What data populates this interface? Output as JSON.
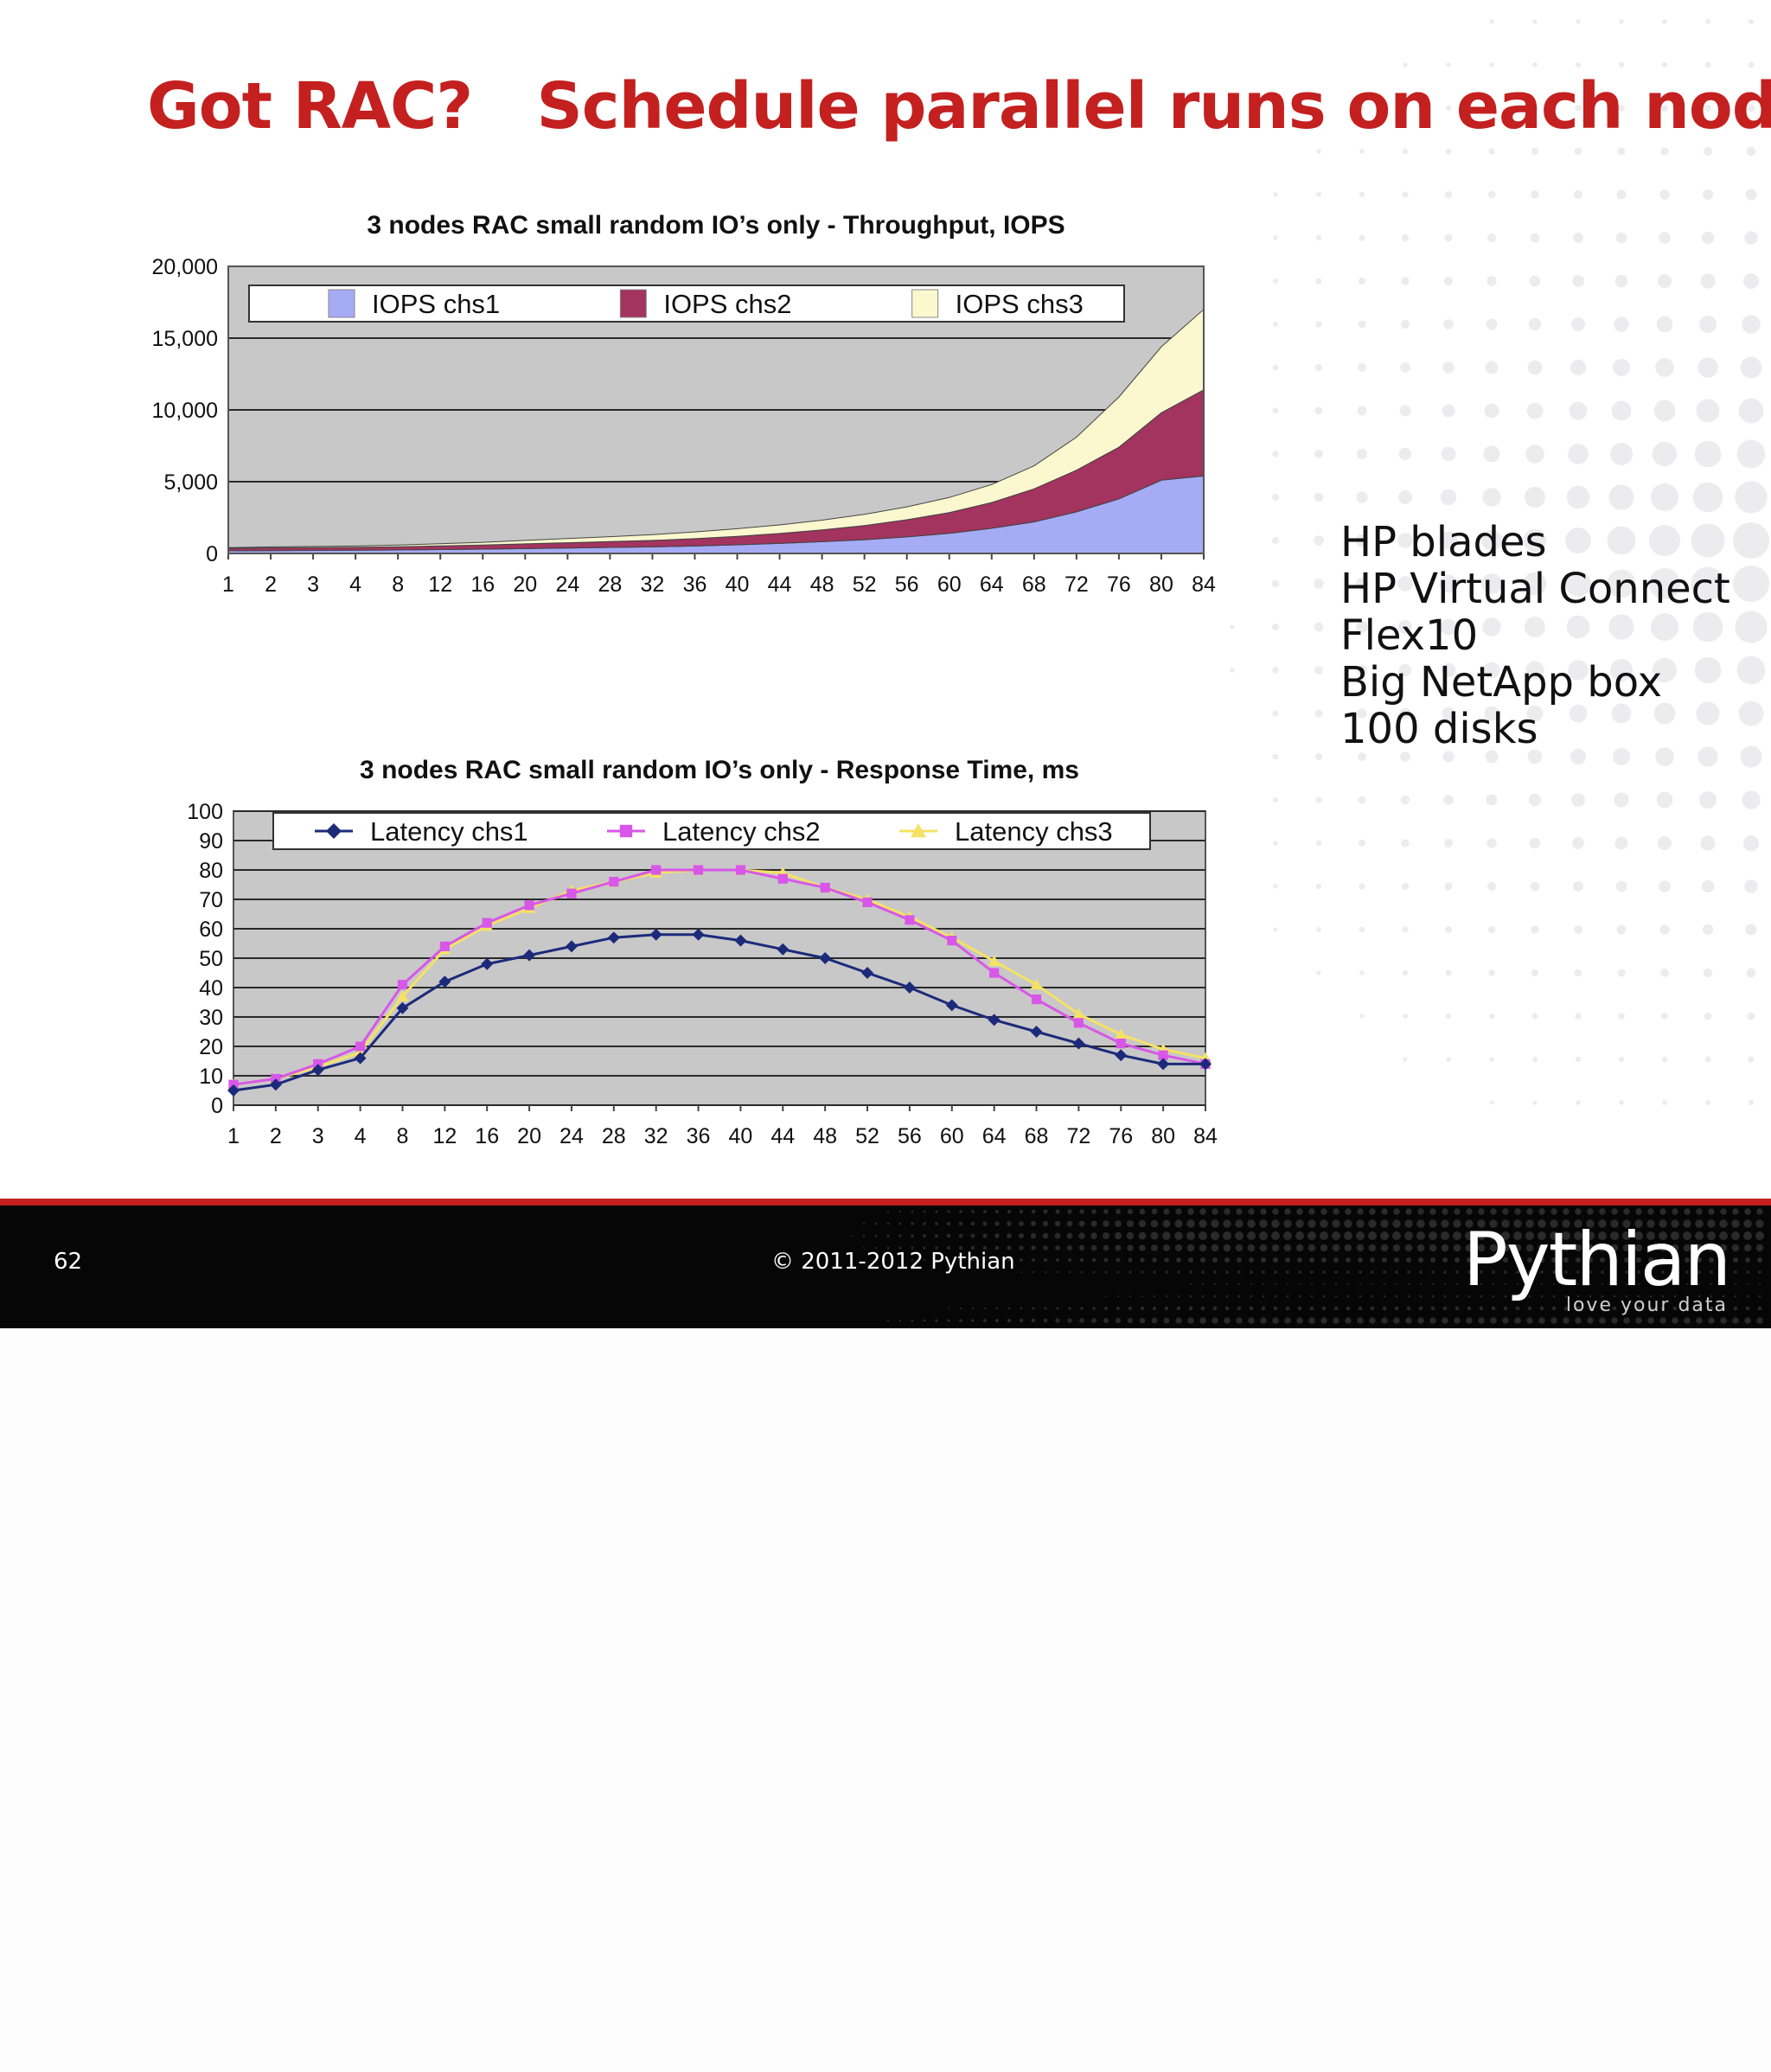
{
  "slide": {
    "title": "Got RAC?   Schedule parallel runs on each node",
    "bullets": [
      "HP blades",
      "HP Virtual Connect",
      "Flex10",
      "Big NetApp box",
      "100 disks"
    ],
    "page_number": "62",
    "copyright": "© 2011-2012 Pythian",
    "logo": {
      "wordmark": "Pythian",
      "tagline": "love your data"
    }
  },
  "colors": {
    "title": "#c3201f",
    "footer_line": "#c3201f",
    "footer_bg": "#060606",
    "plot_bg": "#c8c8c8"
  },
  "chart_data": [
    {
      "type": "area",
      "stacked": true,
      "title": "3 nodes RAC small random IO’s only - Throughput, IOPS",
      "xlabel": "",
      "ylabel": "",
      "categories": [
        "1",
        "2",
        "3",
        "4",
        "8",
        "12",
        "16",
        "20",
        "24",
        "28",
        "32",
        "36",
        "40",
        "44",
        "48",
        "52",
        "56",
        "60",
        "64",
        "68",
        "72",
        "76",
        "80",
        "84"
      ],
      "ylim": [
        0,
        20000
      ],
      "yticks": [
        0,
        5000,
        10000,
        15000,
        20000
      ],
      "ytick_labels": [
        "0",
        "5,000",
        "10,000",
        "15,000",
        "20,000"
      ],
      "grid": true,
      "legend": "top",
      "series": [
        {
          "name": "IOPS chs1",
          "color": "#a6abf6",
          "values": [
            180,
            200,
            210,
            220,
            240,
            270,
            300,
            340,
            380,
            420,
            460,
            520,
            600,
            700,
            820,
            960,
            1150,
            1400,
            1750,
            2200,
            2900,
            3800,
            5100,
            5400
          ]
        },
        {
          "name": "IOPS chs2",
          "color": "#a3335f",
          "values": [
            170,
            190,
            200,
            210,
            230,
            260,
            290,
            330,
            370,
            410,
            450,
            510,
            590,
            690,
            820,
            980,
            1200,
            1450,
            1800,
            2300,
            2900,
            3600,
            4700,
            6000
          ]
        },
        {
          "name": "IOPS chs3",
          "color": "#fbf8cf",
          "values": [
            60,
            70,
            80,
            90,
            120,
            150,
            190,
            240,
            290,
            340,
            400,
            470,
            530,
            600,
            680,
            780,
            900,
            1050,
            1250,
            1600,
            2300,
            3500,
            4600,
            5600
          ]
        }
      ]
    },
    {
      "type": "line",
      "title": "3 nodes RAC small random IO’s only - Response Time, ms",
      "xlabel": "",
      "ylabel": "",
      "categories": [
        "1",
        "2",
        "3",
        "4",
        "8",
        "12",
        "16",
        "20",
        "24",
        "28",
        "32",
        "36",
        "40",
        "44",
        "48",
        "52",
        "56",
        "60",
        "64",
        "68",
        "72",
        "76",
        "80",
        "84"
      ],
      "ylim": [
        0,
        100
      ],
      "yticks": [
        0,
        10,
        20,
        30,
        40,
        50,
        60,
        70,
        80,
        90,
        100
      ],
      "ytick_labels": [
        "0",
        "10",
        "20",
        "30",
        "40",
        "50",
        "60",
        "70",
        "80",
        "90",
        "100"
      ],
      "grid": true,
      "legend": "top",
      "series": [
        {
          "name": "Latency chs1",
          "color": "#1c2a7a",
          "marker": "diamond",
          "values": [
            5,
            7,
            12,
            16,
            33,
            42,
            48,
            51,
            54,
            57,
            58,
            58,
            56,
            53,
            50,
            45,
            40,
            34,
            29,
            25,
            21,
            17,
            14,
            14
          ]
        },
        {
          "name": "Latency chs2",
          "color": "#d857e8",
          "marker": "square",
          "values": [
            7,
            9,
            14,
            20,
            41,
            54,
            62,
            68,
            72,
            76,
            80,
            80,
            80,
            77,
            74,
            69,
            63,
            56,
            45,
            36,
            28,
            21,
            17,
            14
          ]
        },
        {
          "name": "Latency chs3",
          "color": "#f5e265",
          "marker": "triangle",
          "values": [
            7,
            9,
            13,
            18,
            37,
            53,
            61,
            67,
            73,
            76,
            79,
            80,
            80,
            79,
            74,
            70,
            64,
            57,
            49,
            41,
            31,
            24,
            19,
            16
          ]
        }
      ]
    }
  ]
}
